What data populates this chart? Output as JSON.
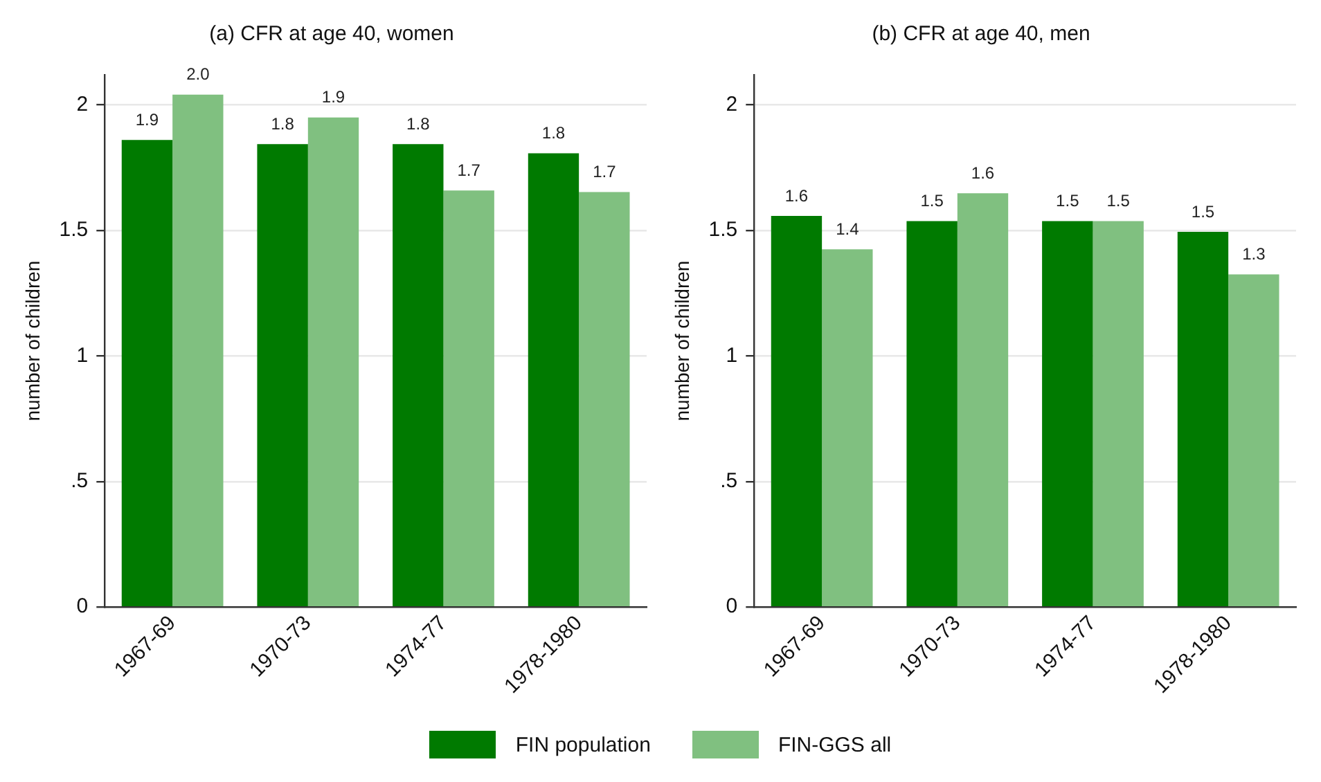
{
  "chart_data": [
    {
      "type": "bar",
      "title": "(a) CFR at age 40, women",
      "ylabel": "number of children",
      "categories": [
        "1967-69",
        "1970-73",
        "1974-77",
        "1978-1980"
      ],
      "series": [
        {
          "name": "FIN population",
          "color": "#007a00",
          "values": [
            1.86,
            1.844,
            1.844,
            1.807
          ],
          "value_labels": [
            "1.9",
            "1.8",
            "1.8",
            "1.8"
          ]
        },
        {
          "name": "FIN-GGS all",
          "color": "#80c080",
          "values": [
            2.041,
            1.95,
            1.659,
            1.653
          ],
          "value_labels": [
            "2.0",
            "1.9",
            "1.7",
            "1.7"
          ]
        }
      ],
      "ylim": [
        0,
        2.12
      ],
      "yticks": [
        0,
        {
          "value": 0.5,
          "label": ".5"
        },
        1,
        1.5,
        2
      ],
      "grid": "y",
      "legend": "bottom"
    },
    {
      "type": "bar",
      "title": "(b) CFR at age 40, men",
      "ylabel": "number of children",
      "categories": [
        "1967-69",
        "1970-73",
        "1974-77",
        "1978-1980"
      ],
      "series": [
        {
          "color": "#007a00",
          "values": [
            1.558,
            1.537,
            1.537,
            1.494
          ],
          "value_labels": [
            "1.6",
            "1.5",
            "1.5",
            "1.5"
          ]
        },
        {
          "color": "#80c080",
          "values": [
            1.425,
            1.648,
            1.537,
            1.325
          ],
          "value_labels": [
            "1.4",
            "1.6",
            "1.5",
            "1.3"
          ]
        }
      ],
      "ylim": [
        0,
        2.12
      ],
      "yticks": [
        0,
        {
          "value": 0.5,
          "label": ".5"
        },
        1,
        1.5,
        2
      ],
      "grid": "y"
    }
  ]
}
